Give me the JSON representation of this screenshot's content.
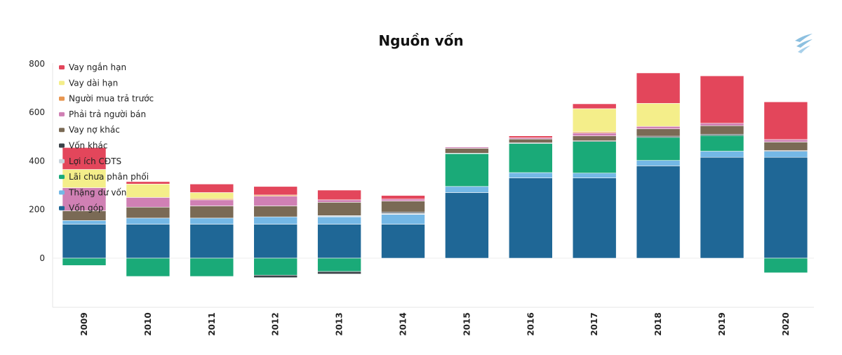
{
  "chart_data": {
    "type": "bar",
    "stacked": true,
    "title": "Nguồn vốn",
    "xlabel": "",
    "ylabel": "",
    "ylim": [
      -200,
      800
    ],
    "yticks": [
      0,
      200,
      400,
      600,
      800
    ],
    "legend_position": "top-left",
    "grid": false,
    "categories": [
      "2009",
      "2010",
      "2011",
      "2012",
      "2013",
      "2014",
      "2015",
      "2016",
      "2017",
      "2018",
      "2019",
      "2020"
    ],
    "series": [
      {
        "name": "Vốn góp",
        "color": "#1f6796",
        "values": [
          140,
          140,
          140,
          140,
          140,
          140,
          270,
          330,
          330,
          380,
          415,
          415
        ]
      },
      {
        "name": "Thặng dư vốn",
        "color": "#74b8e6",
        "values": [
          15,
          25,
          25,
          30,
          30,
          40,
          25,
          22,
          20,
          22,
          25,
          25
        ]
      },
      {
        "name": "Lãi chưa phân phối",
        "color": "#1aaa78",
        "values": [
          -30,
          -75,
          -75,
          -70,
          -55,
          0,
          135,
          120,
          130,
          95,
          65,
          -60
        ]
      },
      {
        "name": "Lợi ích CĐTS",
        "color": "#c8d4dc",
        "values": [
          0,
          0,
          0,
          0,
          5,
          5,
          0,
          0,
          0,
          0,
          0,
          0
        ]
      },
      {
        "name": "Vốn khác",
        "color": "#3a4248",
        "values": [
          0,
          0,
          0,
          -10,
          -10,
          5,
          2,
          3,
          3,
          5,
          5,
          3
        ]
      },
      {
        "name": "Vay nợ khác",
        "color": "#7a6a55",
        "values": [
          40,
          45,
          50,
          45,
          55,
          45,
          20,
          15,
          20,
          30,
          35,
          35
        ]
      },
      {
        "name": "Phải trả người bán",
        "color": "#d080b4",
        "values": [
          95,
          40,
          25,
          40,
          10,
          8,
          5,
          5,
          12,
          10,
          10,
          10
        ]
      },
      {
        "name": "Người mua trả trước",
        "color": "#e89650",
        "values": [
          0,
          0,
          5,
          5,
          0,
          0,
          0,
          0,
          5,
          0,
          0,
          0
        ]
      },
      {
        "name": "Vay dài hạn",
        "color": "#f4ee8a",
        "values": [
          75,
          55,
          25,
          0,
          0,
          0,
          0,
          0,
          95,
          95,
          0,
          0
        ]
      },
      {
        "name": "Vay ngắn hạn",
        "color": "#e3465b",
        "values": [
          90,
          10,
          35,
          35,
          40,
          15,
          0,
          8,
          20,
          125,
          195,
          155
        ]
      }
    ]
  },
  "logo": {
    "icon": "brand-swoosh-icon",
    "color": "#7ab0d8"
  }
}
